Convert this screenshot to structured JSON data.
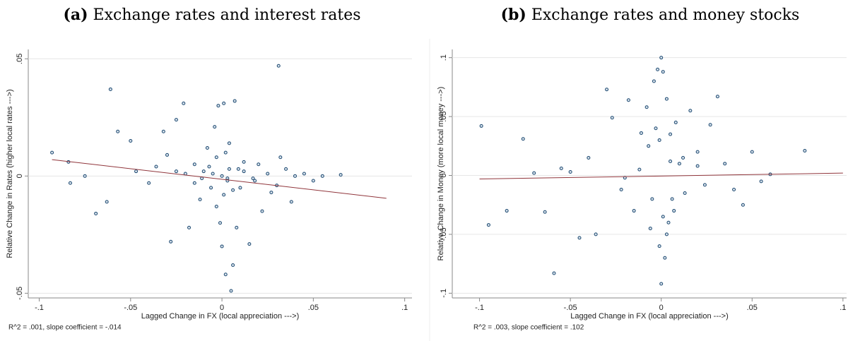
{
  "chart_data": [
    {
      "type": "scatter",
      "label": "(a)",
      "title": "Exchange rates and interest rates",
      "x_label": "Lagged Change in FX (local appreciation --->)",
      "y_label": "Relative Change in Rates (higher local rates --->)",
      "annotation": "R^2 = .001, slope coefficient = -.014",
      "color": "#1a476f",
      "grid": true,
      "xlim": [
        -0.106,
        0.104
      ],
      "ylim": [
        -0.052,
        0.054
      ],
      "xticks": [
        {
          "value": -0.1,
          "label": "-.1"
        },
        {
          "value": -0.05,
          "label": "-.05"
        },
        0,
        {
          "value": 0.05,
          "label": ".05"
        },
        {
          "value": 0.1,
          "label": ".1"
        }
      ],
      "yticks": [
        {
          "value": -0.05,
          "label": "-.05"
        },
        0,
        {
          "value": 0.05,
          "label": ".05"
        }
      ],
      "x": [
        -0.093,
        -0.084,
        -0.083,
        -0.075,
        -0.069,
        -0.063,
        -0.061,
        -0.057,
        -0.05,
        -0.047,
        -0.04,
        -0.036,
        -0.032,
        -0.03,
        -0.028,
        -0.025,
        -0.021,
        -0.018,
        -0.015,
        -0.012,
        -0.01,
        -0.008,
        -0.006,
        -0.004,
        -0.003,
        -0.002,
        -0.001,
        0,
        0,
        0.001,
        0.002,
        0.002,
        0.003,
        0.004,
        0.005,
        0.006,
        0.007,
        0.008,
        0.01,
        0.012,
        0.015,
        0.018,
        0.02,
        0.022,
        0.025,
        0.027,
        0.03,
        0.031,
        0.032,
        0.035,
        0.038,
        0.04,
        0.045,
        0.05,
        0.055,
        0.065,
        -0.005,
        0.003,
        -0.015,
        0.012,
        -0.02,
        -0.011,
        0.009,
        -0.007,
        0.006,
        -0.003,
        0.001,
        0.004,
        -0.025,
        0.017
      ],
      "y": [
        0.01,
        0.006,
        -0.003,
        0,
        -0.016,
        -0.011,
        0.037,
        0.019,
        0.015,
        0.002,
        -0.003,
        0.004,
        0.019,
        0.009,
        -0.028,
        0.024,
        0.031,
        -0.022,
        0.005,
        -0.01,
        0.002,
        0.012,
        -0.005,
        0.021,
        -0.013,
        0.03,
        -0.02,
        0,
        -0.03,
        0.031,
        0.01,
        -0.042,
        -0.001,
        0.003,
        -0.049,
        -0.038,
        0.032,
        -0.022,
        -0.005,
        0.006,
        -0.029,
        -0.002,
        0.005,
        -0.015,
        0.001,
        -0.007,
        -0.004,
        0.047,
        0.008,
        0.003,
        -0.011,
        0,
        0.001,
        -0.002,
        0,
        0.0005,
        0.001,
        -0.002,
        -0.003,
        0.002,
        0.001,
        -0.001,
        0.003,
        0.004,
        -0.006,
        0.008,
        -0.008,
        0.014,
        0.002,
        -0.001
      ],
      "fit": {
        "color": "#90353b",
        "x": [
          -0.093,
          0.09
        ],
        "y": [
          0.007,
          -0.0095
        ]
      }
    },
    {
      "type": "scatter",
      "label": "(b)",
      "title": "Exchange rates and money stocks",
      "x_label": "Lagged Change in FX (local appreciation --->)",
      "y_label": "Relative Change in Money (more local money --->)",
      "annotation": "R^2 = .003, slope coefficient = .102",
      "color": "#1a476f",
      "grid": true,
      "xlim": [
        -0.115,
        0.102
      ],
      "ylim": [
        -0.104,
        0.107
      ],
      "xticks": [
        {
          "value": -0.1,
          "label": "-.1"
        },
        {
          "value": -0.05,
          "label": "-.05"
        },
        0,
        {
          "value": 0.05,
          "label": ".05"
        },
        {
          "value": 0.1,
          "label": ".1"
        }
      ],
      "yticks": [
        {
          "value": -0.1,
          "label": "-.1"
        },
        {
          "value": -0.05,
          "label": "-.05"
        },
        0,
        {
          "value": 0.05,
          "label": ".05"
        },
        {
          "value": 0.1,
          "label": ".1"
        }
      ],
      "x": [
        -0.099,
        -0.095,
        -0.085,
        -0.076,
        -0.07,
        -0.064,
        -0.059,
        -0.055,
        -0.05,
        -0.045,
        -0.04,
        -0.036,
        -0.03,
        -0.027,
        -0.022,
        -0.018,
        -0.015,
        -0.011,
        -0.008,
        -0.006,
        -0.004,
        -0.002,
        -0.001,
        0,
        0,
        0.001,
        0.002,
        0.003,
        0.004,
        0.005,
        0.006,
        0.008,
        0.01,
        0.013,
        0.016,
        0.02,
        0.024,
        0.027,
        0.031,
        0.035,
        0.04,
        0.045,
        0.05,
        0.055,
        0.06,
        0.079,
        -0.007,
        0.007,
        -0.012,
        0.012,
        -0.003,
        0.003,
        -0.02,
        0.02,
        -0.001,
        0.001,
        -0.005,
        0.005
      ],
      "y": [
        0.042,
        -0.042,
        -0.03,
        0.031,
        0.002,
        -0.031,
        -0.083,
        0.006,
        0.003,
        -0.053,
        0.015,
        -0.05,
        0.073,
        0.049,
        -0.012,
        0.064,
        -0.03,
        0.036,
        0.058,
        -0.045,
        0.08,
        0.09,
        -0.06,
        0.1,
        -0.092,
        0.088,
        -0.07,
        0.065,
        -0.04,
        0.035,
        -0.02,
        0.045,
        0.01,
        -0.015,
        0.055,
        0.02,
        -0.008,
        0.043,
        0.067,
        0.01,
        -0.012,
        -0.025,
        0.02,
        -0.005,
        0.001,
        0.021,
        0.025,
        -0.03,
        0.005,
        0.015,
        0.04,
        -0.05,
        -0.002,
        0.008,
        0.03,
        -0.035,
        -0.02,
        0.012
      ],
      "fit": {
        "color": "#90353b",
        "x": [
          -0.1,
          0.1
        ],
        "y": [
          -0.003,
          0.002
        ]
      }
    }
  ]
}
